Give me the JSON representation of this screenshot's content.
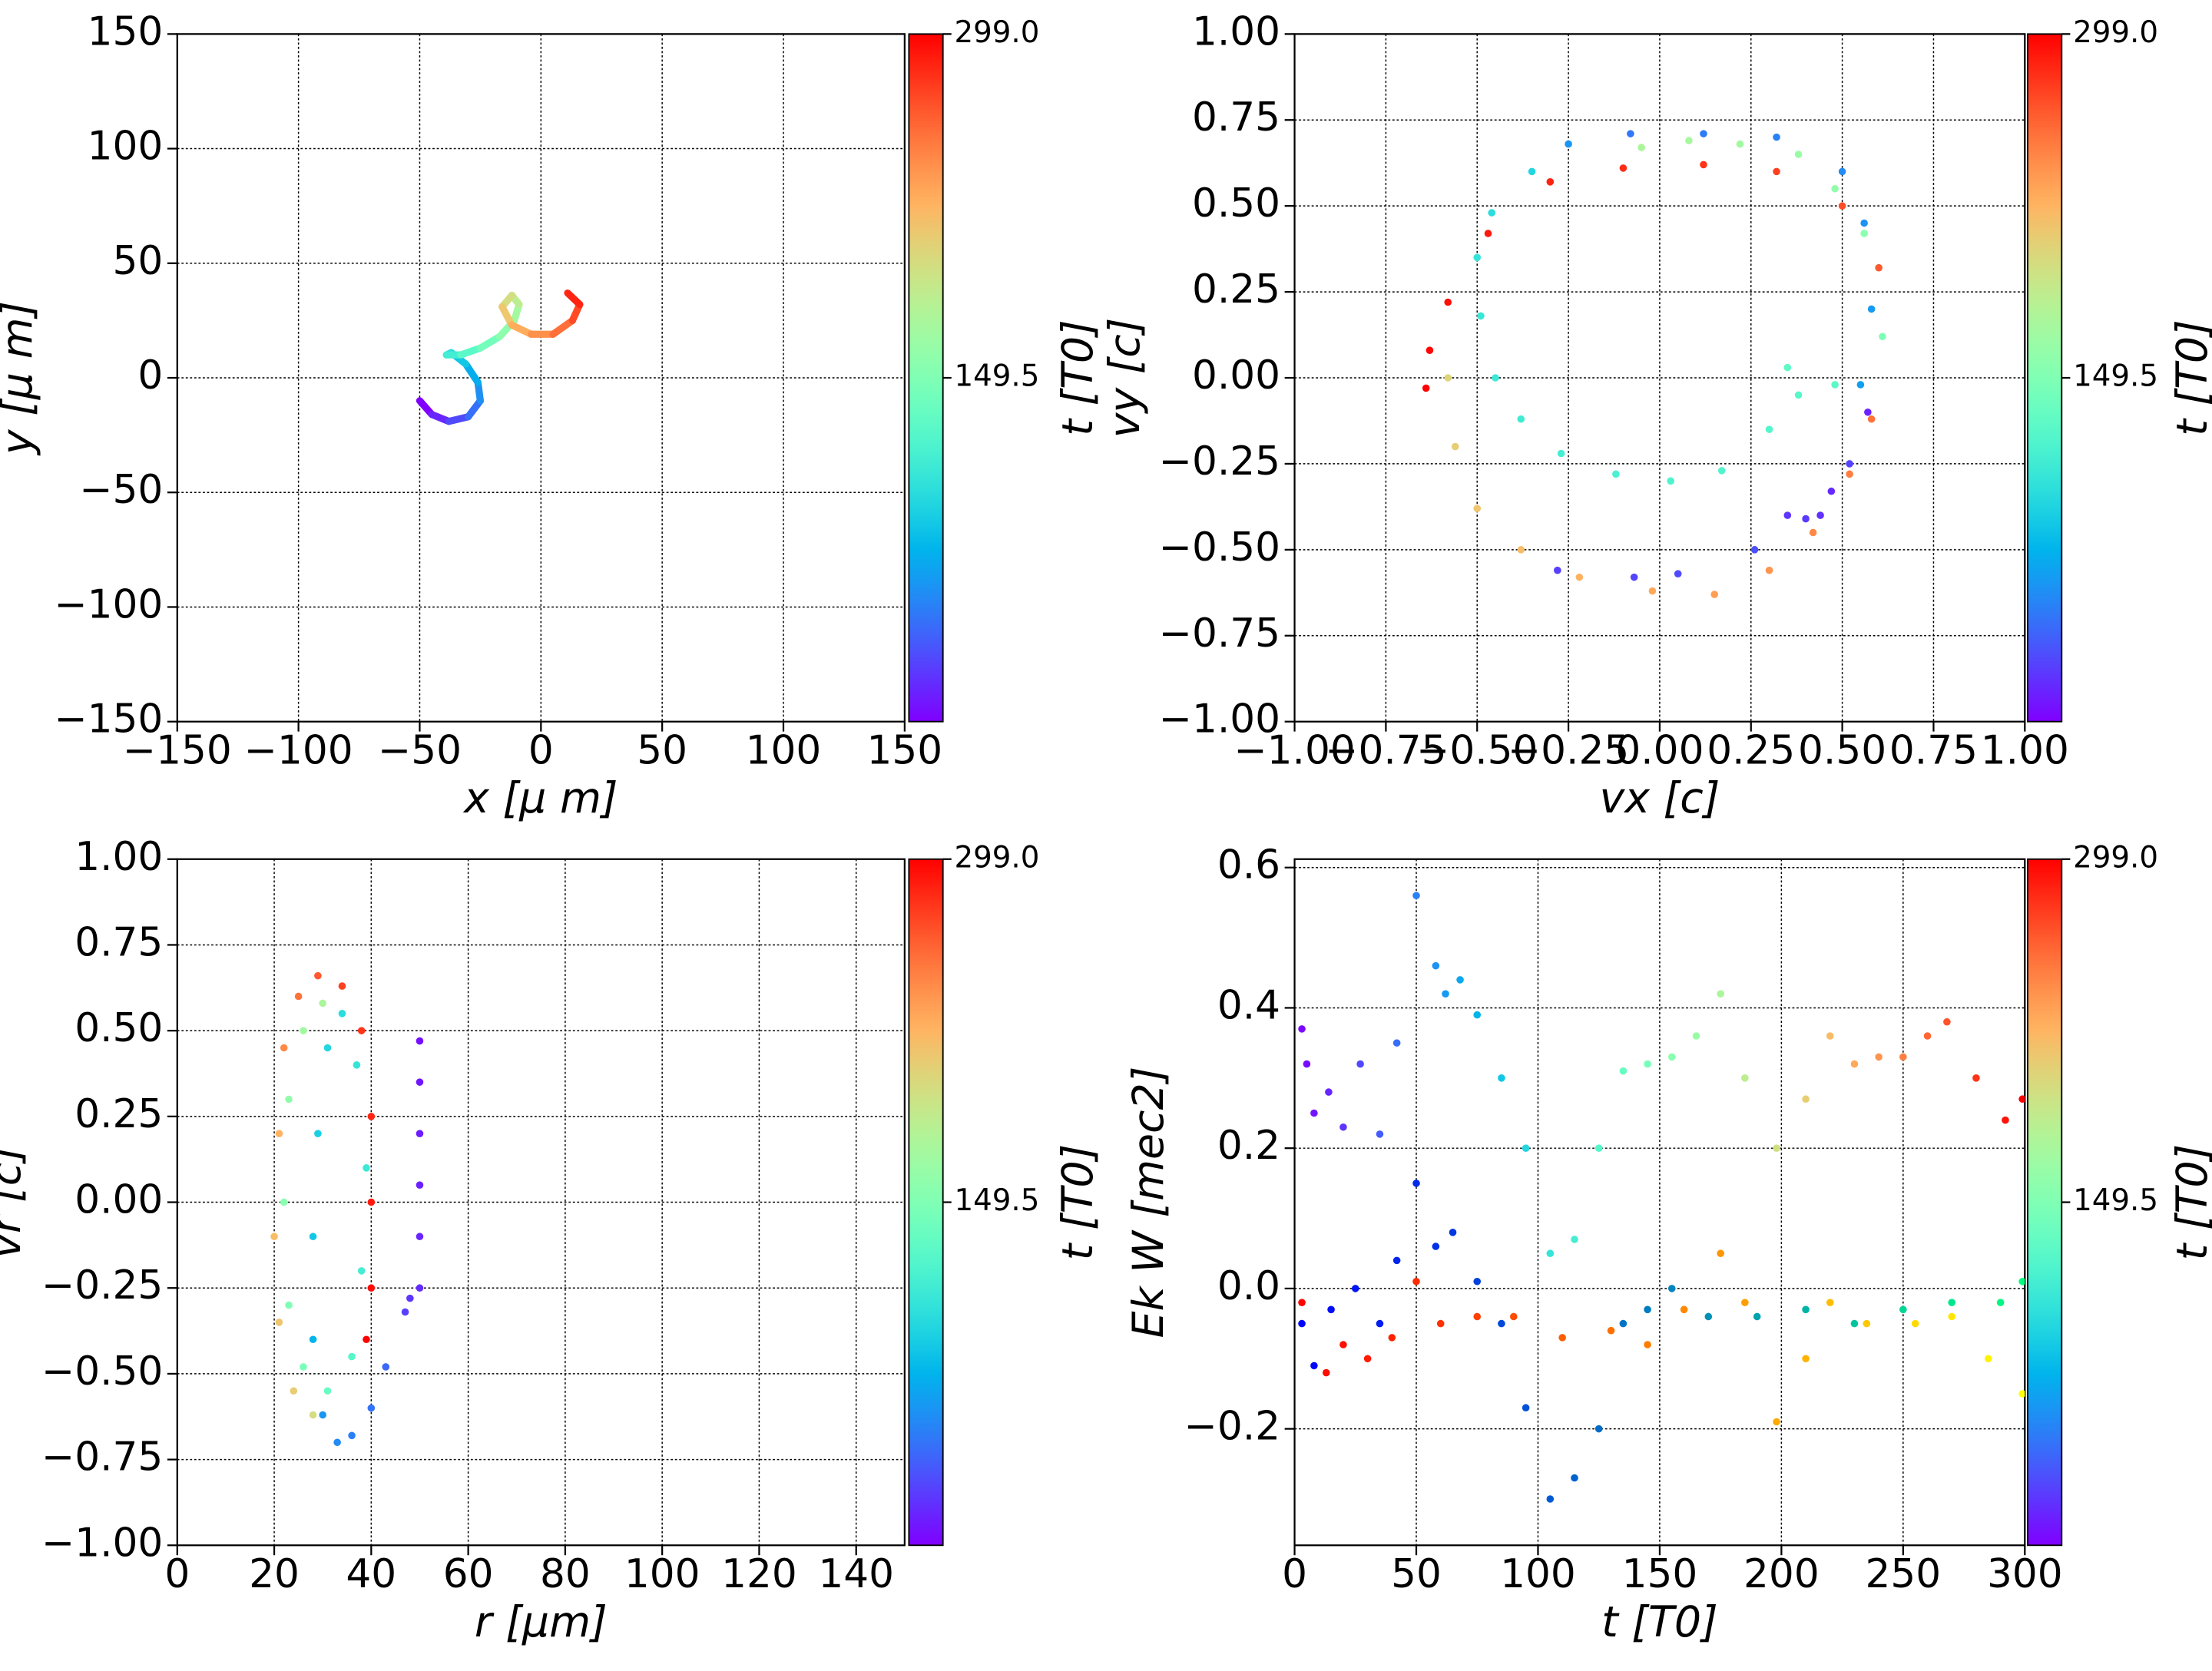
{
  "chart_data": [
    {
      "type": "line",
      "xlabel": "x  [μ m]",
      "ylabel": "y  [μ m]",
      "xlim": [
        -150,
        150
      ],
      "ylim": [
        -150,
        150
      ],
      "xticks": [
        {
          "value": -150,
          "label": "−150"
        },
        {
          "value": -100,
          "label": "−100"
        },
        {
          "value": -50,
          "label": "−50"
        },
        0,
        50,
        100,
        150
      ],
      "yticks": [
        {
          "value": -150,
          "label": "−150"
        },
        {
          "value": -100,
          "label": "−100"
        },
        {
          "value": -50,
          "label": "−50"
        },
        0,
        50,
        100,
        150
      ],
      "grid": true,
      "colorbar": {
        "label": "t [T0]",
        "lim": [
          0,
          299
        ],
        "ticks": [
          149.5,
          {
            "value": 299,
            "label": "299.0"
          }
        ],
        "colormap": "rainbow"
      },
      "series": [
        {
          "x": [
            -50,
            -45,
            -38,
            -30,
            -25,
            -26,
            -31,
            -37,
            -39,
            -33,
            -25,
            -17,
            -11,
            -9,
            -12,
            -16,
            -12,
            -4,
            5,
            13,
            16,
            11
          ],
          "y": [
            -10,
            -16,
            -19,
            -17,
            -10,
            -2,
            6,
            11,
            10,
            10,
            13,
            18,
            25,
            32,
            36,
            31,
            23,
            19,
            19,
            25,
            32,
            37
          ],
          "t": [
            0,
            14,
            28,
            43,
            57,
            71,
            85,
            100,
            114,
            128,
            142,
            157,
            171,
            185,
            199,
            214,
            228,
            242,
            256,
            271,
            285,
            299
          ]
        }
      ]
    },
    {
      "type": "scatter",
      "xlabel": "vx [c]",
      "ylabel": "vy [c]",
      "xlim": [
        -1,
        1
      ],
      "ylim": [
        -1,
        1
      ],
      "xticks": [
        {
          "value": -1,
          "label": "−1.00"
        },
        {
          "value": -0.75,
          "label": "−0.75"
        },
        {
          "value": -0.5,
          "label": "−0.50"
        },
        {
          "value": -0.25,
          "label": "−0.25"
        },
        {
          "value": 0,
          "label": "0.00"
        },
        {
          "value": 0.25,
          "label": "0.25"
        },
        {
          "value": 0.5,
          "label": "0.50"
        },
        {
          "value": 0.75,
          "label": "0.75"
        },
        {
          "value": 1,
          "label": "1.00"
        }
      ],
      "yticks": [
        {
          "value": -1,
          "label": "−1.00"
        },
        {
          "value": -0.75,
          "label": "−0.75"
        },
        {
          "value": -0.5,
          "label": "−0.50"
        },
        {
          "value": -0.25,
          "label": "−0.25"
        },
        {
          "value": 0,
          "label": "0.00"
        },
        {
          "value": 0.25,
          "label": "0.25"
        },
        {
          "value": 0.5,
          "label": "0.50"
        },
        {
          "value": 0.75,
          "label": "0.75"
        },
        {
          "value": 1,
          "label": "1.00"
        }
      ],
      "grid": true,
      "colorbar": {
        "label": "t [T0]",
        "lim": [
          0,
          299
        ],
        "ticks": [
          149.5,
          {
            "value": 299,
            "label": "299.0"
          }
        ],
        "colormap": "rainbow"
      },
      "series": [
        {
          "x": [
            0.35,
            0.4,
            0.44,
            0.47,
            0.52,
            0.57,
            0.26,
            0.05,
            -0.07,
            -0.28,
            0.5,
            0.32,
            0.12,
            -0.08,
            -0.25,
            0.56,
            0.58,
            0.55,
            -0.35,
            -0.46,
            -0.5,
            -0.49,
            -0.45,
            -0.38,
            -0.27,
            -0.12,
            0.03,
            0.17,
            0.3,
            0.38,
            0.48,
            0.35,
            0.48,
            0.38,
            0.22,
            0.08,
            0.6,
            0.61,
            0.56,
            -0.05,
            -0.58,
            -0.56,
            -0.5,
            -0.38,
            -0.22,
            -0.02,
            0.15,
            0.3,
            0.42,
            0.52,
            0.58,
            0.6,
            0.5,
            0.32,
            0.12,
            -0.1,
            -0.3,
            -0.47,
            -0.58,
            -0.63,
            -0.64
          ],
          "y": [
            -0.4,
            -0.41,
            -0.4,
            -0.33,
            -0.25,
            -0.1,
            -0.5,
            -0.57,
            -0.58,
            -0.56,
            0.6,
            0.7,
            0.71,
            0.71,
            0.68,
            0.45,
            0.2,
            -0.02,
            0.6,
            0.48,
            0.35,
            0.18,
            0,
            -0.12,
            -0.22,
            -0.28,
            -0.3,
            -0.27,
            -0.15,
            -0.05,
            -0.02,
            0.03,
            0.55,
            0.65,
            0.68,
            0.69,
            0.32,
            0.12,
            0.42,
            0.67,
            0,
            -0.2,
            -0.38,
            -0.5,
            -0.58,
            -0.62,
            -0.63,
            -0.56,
            -0.45,
            -0.28,
            -0.12,
            0.32,
            0.5,
            0.6,
            0.62,
            0.61,
            0.57,
            0.42,
            0.22,
            0.08,
            -0.03
          ],
          "t": [
            20,
            22,
            18,
            15,
            25,
            12,
            30,
            28,
            26,
            24,
            55,
            50,
            48,
            46,
            60,
            58,
            62,
            64,
            95,
            100,
            105,
            108,
            110,
            112,
            115,
            118,
            120,
            122,
            124,
            126,
            128,
            130,
            160,
            165,
            170,
            172,
            150,
            148,
            155,
            175,
            205,
            210,
            215,
            220,
            225,
            230,
            235,
            240,
            245,
            250,
            255,
            265,
            270,
            275,
            280,
            283,
            286,
            290,
            294,
            297,
            299
          ]
        }
      ]
    },
    {
      "type": "scatter",
      "xlabel": "r [μm]",
      "ylabel": "vr [c]",
      "xlim": [
        0,
        150
      ],
      "ylim": [
        -1,
        1
      ],
      "xticks": [
        0,
        20,
        40,
        60,
        80,
        100,
        120,
        140
      ],
      "yticks": [
        {
          "value": -1,
          "label": "−1.00"
        },
        {
          "value": -0.75,
          "label": "−0.75"
        },
        {
          "value": -0.5,
          "label": "−0.50"
        },
        {
          "value": -0.25,
          "label": "−0.25"
        },
        {
          "value": 0,
          "label": "0.00"
        },
        {
          "value": 0.25,
          "label": "0.25"
        },
        {
          "value": 0.5,
          "label": "0.50"
        },
        {
          "value": 0.75,
          "label": "0.75"
        },
        {
          "value": 1,
          "label": "1.00"
        }
      ],
      "grid": true,
      "colorbar": {
        "label": "t [T0]",
        "lim": [
          0,
          299
        ],
        "ticks": [
          149.5,
          {
            "value": 299,
            "label": "299.0"
          }
        ],
        "colormap": "rainbow"
      },
      "series": [
        {
          "x": [
            50,
            50,
            50,
            50,
            50,
            50,
            48,
            47,
            43,
            40,
            36,
            33,
            30,
            28,
            28,
            29,
            31,
            34,
            37,
            39,
            38,
            36,
            31,
            26,
            23,
            22,
            23,
            26,
            30,
            28,
            24,
            21,
            20,
            21,
            22,
            25,
            29,
            34,
            38,
            40,
            40,
            40,
            39
          ],
          "y": [
            0.47,
            0.35,
            0.2,
            0.05,
            -0.1,
            -0.25,
            -0.28,
            -0.32,
            -0.48,
            -0.6,
            -0.68,
            -0.7,
            -0.62,
            -0.4,
            -0.1,
            0.2,
            0.45,
            0.55,
            0.4,
            0.1,
            -0.2,
            -0.45,
            -0.55,
            -0.48,
            -0.3,
            0,
            0.3,
            0.5,
            0.58,
            -0.62,
            -0.55,
            -0.35,
            -0.1,
            0.2,
            0.45,
            0.6,
            0.66,
            0.63,
            0.5,
            0.25,
            0,
            -0.25,
            -0.4
          ],
          "t": [
            5,
            8,
            10,
            12,
            14,
            16,
            20,
            24,
            40,
            45,
            50,
            55,
            60,
            75,
            85,
            90,
            95,
            100,
            105,
            110,
            115,
            125,
            135,
            145,
            150,
            155,
            160,
            170,
            175,
            200,
            210,
            215,
            220,
            225,
            245,
            255,
            265,
            275,
            280,
            285,
            290,
            295,
            299
          ]
        }
      ]
    },
    {
      "type": "scatter",
      "xlabel": "t [T0]",
      "ylabel": "Ek W [mec2]",
      "xlim": [
        0,
        300
      ],
      "ylim": [
        -0.366,
        0.612
      ],
      "xticks": [
        0,
        50,
        100,
        150,
        200,
        250,
        300
      ],
      "yticks": [
        {
          "value": -0.2,
          "label": "−0.2"
        },
        {
          "value": 0,
          "label": "0.0"
        },
        0.2,
        0.4,
        0.6
      ],
      "grid": true,
      "color_by": "x",
      "colorbar": {
        "label": "t [T0]",
        "lim": [
          0,
          299
        ],
        "ticks": [
          149.5,
          {
            "value": 299,
            "label": "299.0"
          }
        ],
        "colormap": "rainbow"
      },
      "series": [
        {
          "colormap": "rainbow",
          "x": [
            3,
            5,
            8,
            14,
            20,
            27,
            35,
            42,
            50,
            58,
            62,
            68,
            75,
            85,
            95,
            105,
            115,
            125,
            135,
            145,
            155,
            165,
            175,
            185,
            198,
            210,
            220,
            230,
            240,
            250,
            260,
            268,
            280,
            292,
            299
          ],
          "y": [
            0.37,
            0.32,
            0.25,
            0.28,
            0.23,
            0.32,
            0.22,
            0.35,
            0.56,
            0.46,
            0.42,
            0.44,
            0.39,
            0.3,
            0.2,
            0.05,
            0.07,
            0.2,
            0.31,
            0.32,
            0.33,
            0.36,
            0.42,
            0.3,
            0.2,
            0.27,
            0.36,
            0.32,
            0.33,
            0.33,
            0.36,
            0.38,
            0.3,
            0.24,
            0.27
          ]
        },
        {
          "colormap": "winter",
          "x": [
            3,
            8,
            15,
            25,
            35,
            42,
            50,
            58,
            65,
            75,
            85,
            95,
            105,
            115,
            125,
            135,
            145,
            155,
            170,
            190,
            210,
            230,
            250,
            270,
            290,
            299
          ],
          "y": [
            -0.05,
            -0.11,
            -0.03,
            0,
            -0.05,
            0.04,
            0.15,
            0.06,
            0.08,
            0.01,
            -0.05,
            -0.17,
            -0.3,
            -0.27,
            -0.2,
            -0.05,
            -0.03,
            0,
            -0.04,
            -0.04,
            -0.03,
            -0.05,
            -0.03,
            -0.02,
            -0.02,
            0.01
          ]
        },
        {
          "colormap": "autumn",
          "x": [
            3,
            13,
            20,
            30,
            40,
            50,
            60,
            75,
            90,
            110,
            130,
            145,
            160,
            175,
            185,
            198,
            210,
            220,
            235,
            255,
            270,
            285,
            299
          ],
          "y": [
            -0.02,
            -0.12,
            -0.08,
            -0.1,
            -0.07,
            0.01,
            -0.05,
            -0.04,
            -0.04,
            -0.07,
            -0.06,
            -0.08,
            -0.03,
            0.05,
            -0.02,
            -0.19,
            -0.1,
            -0.02,
            -0.05,
            -0.05,
            -0.04,
            -0.1,
            -0.15
          ]
        }
      ]
    }
  ]
}
